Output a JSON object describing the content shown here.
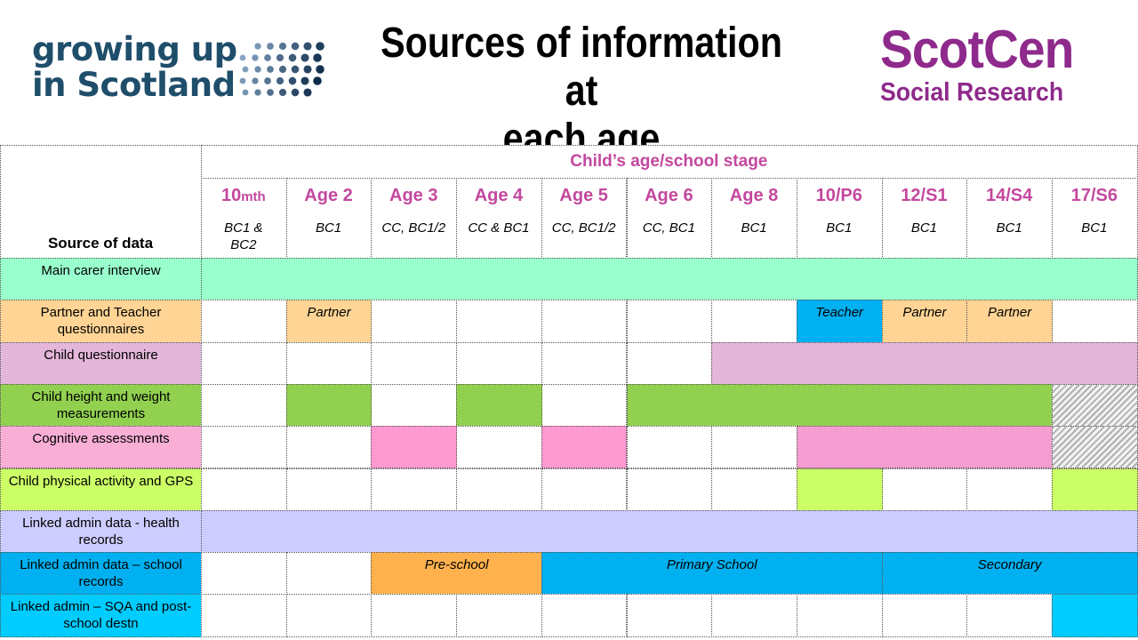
{
  "header": {
    "gus_logo_line1": "growing up",
    "gus_logo_line2": "in Scotland",
    "title_line1": "Sources of information at",
    "title_line2": "each age",
    "scotcen_line1": "ScotCen",
    "scotcen_line2": "Social Research"
  },
  "table": {
    "span_header": "Child’s age/school stage",
    "source_label": "Source of data",
    "ages": [
      {
        "main": "10",
        "small": "mth",
        "sub": "BC1 &\nBC2"
      },
      {
        "main": "Age 2",
        "small": "",
        "sub": "BC1"
      },
      {
        "main": "Age 3",
        "small": "",
        "sub": "CC, BC1/2"
      },
      {
        "main": "Age 4",
        "small": "",
        "sub": "CC & BC1"
      },
      {
        "main": "Age 5",
        "small": "",
        "sub": "CC, BC1/2"
      },
      {
        "main": "Age 6",
        "small": "",
        "sub": "CC, BC1"
      },
      {
        "main": "Age 8",
        "small": "",
        "sub": "BC1"
      },
      {
        "main": "10/P6",
        "small": "",
        "sub": "BC1"
      },
      {
        "main": "12/S1",
        "small": "",
        "sub": "BC1"
      },
      {
        "main": "14/S4",
        "small": "",
        "sub": "BC1"
      },
      {
        "main": "17/S6",
        "small": "",
        "sub": "BC1"
      }
    ],
    "rows": [
      {
        "label": "Main carer interview",
        "segments": [
          {
            "s": 0,
            "e": 10,
            "color": "#99ffcc",
            "text": ""
          }
        ]
      },
      {
        "label": "Partner and Teacher questionnaires",
        "segments": [
          {
            "s": 1,
            "e": 1,
            "color": "#ffd495",
            "text": "Partner"
          },
          {
            "s": 7,
            "e": 7,
            "color": "#00b0f0",
            "text": "Teacher"
          },
          {
            "s": 8,
            "e": 8,
            "color": "#ffd495",
            "text": "Partner"
          },
          {
            "s": 9,
            "e": 9,
            "color": "#ffd495",
            "text": "Partner"
          }
        ]
      },
      {
        "label": "Child questionnaire",
        "segments": [
          {
            "s": 6,
            "e": 10,
            "color": "#e3b6da",
            "text": ""
          }
        ]
      },
      {
        "label": "Child height and weight measurements",
        "segments": [
          {
            "s": 1,
            "e": 1,
            "color": "#92d050",
            "text": ""
          },
          {
            "s": 3,
            "e": 3,
            "color": "#92d050",
            "text": ""
          },
          {
            "s": 5,
            "e": 9,
            "color": "#92d050",
            "text": ""
          },
          {
            "s": 10,
            "e": 10,
            "color": "hatch",
            "text": ""
          }
        ]
      },
      {
        "label": "Cognitive assessments",
        "segments": [
          {
            "s": 2,
            "e": 2,
            "color": "#ff9ad0",
            "text": ""
          },
          {
            "s": 4,
            "e": 4,
            "color": "#ff9ad0",
            "text": ""
          },
          {
            "s": 7,
            "e": 9,
            "color": "#f49dd1",
            "text": ""
          },
          {
            "s": 10,
            "e": 10,
            "color": "hatch",
            "text": ""
          }
        ]
      },
      {
        "label": "Child physical activity and GPS",
        "segments": [
          {
            "s": 7,
            "e": 7,
            "color": "#ccff66",
            "text": ""
          },
          {
            "s": 10,
            "e": 10,
            "color": "#ccff66",
            "text": ""
          }
        ]
      },
      {
        "label": "Linked admin data - health records",
        "segments": [
          {
            "s": 0,
            "e": 10,
            "color": "#ccccff",
            "text": ""
          }
        ]
      },
      {
        "label": "Linked admin data – school records",
        "segments": [
          {
            "s": 2,
            "e": 3,
            "color": "#ffb14e",
            "text": "Pre-school"
          },
          {
            "s": 4,
            "e": 7,
            "color": "#00b0f0",
            "text": "Primary School"
          },
          {
            "s": 8,
            "e": 10,
            "color": "#00b0f0",
            "text": "Secondary"
          }
        ]
      },
      {
        "label": "Linked admin – SQA and post-school destn",
        "segments": [
          {
            "s": 10,
            "e": 10,
            "color": "#00ccff",
            "text": ""
          }
        ]
      }
    ],
    "label_colors": [
      "#99ffcc",
      "#ffd495",
      "#e3b6da",
      "#92d050",
      "#f8aed5",
      "#ccff66",
      "#ccccff",
      "#00b0f0",
      "#00ccff"
    ]
  }
}
